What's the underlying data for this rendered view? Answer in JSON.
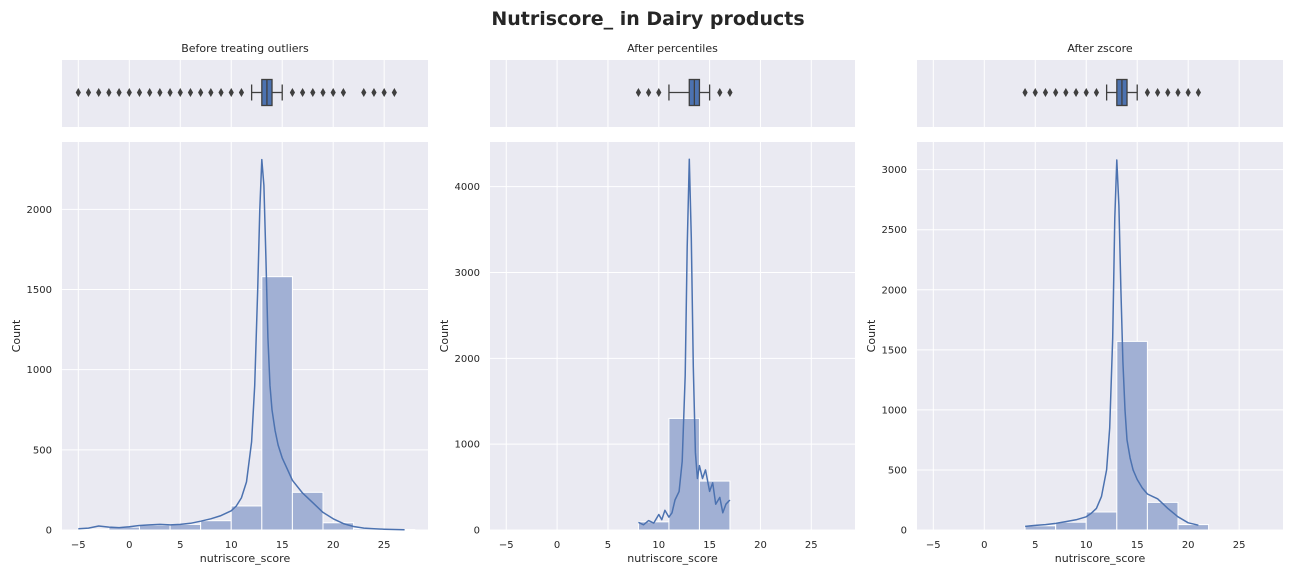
{
  "figure": {
    "title": "Nutriscore_ in Dairy products",
    "colors": {
      "background": "#eaeaf2",
      "grid": "#ffffff",
      "bar": "#a1b0d4",
      "bar_edge": "#ffffff",
      "line": "#4c72b0",
      "box": "#4c72b0",
      "text": "#262626"
    }
  },
  "chart_data": [
    {
      "type": "bar",
      "title": "Before treating outliers",
      "xlabel": "nutriscore_score",
      "ylabel": "Count",
      "xlim": [
        -6.6,
        29.3
      ],
      "ylim": [
        0,
        2420
      ],
      "x_ticks": [
        -5,
        0,
        5,
        10,
        15,
        20,
        25
      ],
      "y_ticks": [
        0,
        500,
        1000,
        1500,
        2000
      ],
      "grid": true,
      "bins": [
        {
          "x0": -5,
          "x1": -2,
          "count": 5
        },
        {
          "x0": -2,
          "x1": 1,
          "count": 18
        },
        {
          "x0": 1,
          "x1": 4,
          "count": 30
        },
        {
          "x0": 4,
          "x1": 7,
          "count": 35
        },
        {
          "x0": 7,
          "x1": 10,
          "count": 58
        },
        {
          "x0": 10,
          "x1": 13,
          "count": 150
        },
        {
          "x0": 13,
          "x1": 16,
          "count": 1580
        },
        {
          "x0": 16,
          "x1": 19,
          "count": 235
        },
        {
          "x0": 19,
          "x1": 22,
          "count": 45
        },
        {
          "x0": 22,
          "x1": 25,
          "count": 8
        },
        {
          "x0": 25,
          "x1": 28,
          "count": 3
        }
      ],
      "kde": {
        "x": [
          -5,
          -4,
          -3,
          -2,
          -1,
          0,
          1,
          2,
          3,
          4,
          5,
          6,
          7,
          8,
          9,
          10,
          10.5,
          11,
          11.5,
          12,
          12.3,
          12.6,
          12.8,
          13,
          13.2,
          13.4,
          13.6,
          13.8,
          14,
          14.3,
          14.6,
          15,
          15.5,
          16,
          17,
          18,
          19,
          20,
          21,
          22,
          23,
          24,
          25,
          26,
          27
        ],
        "y": [
          8,
          12,
          25,
          18,
          15,
          20,
          28,
          32,
          35,
          32,
          35,
          42,
          55,
          70,
          90,
          120,
          150,
          200,
          300,
          550,
          900,
          1500,
          2000,
          2310,
          2150,
          1700,
          1200,
          900,
          750,
          620,
          530,
          450,
          380,
          310,
          230,
          170,
          110,
          70,
          40,
          22,
          12,
          8,
          5,
          3,
          2
        ]
      },
      "box": {
        "min": -5,
        "q1": 13,
        "median": 13.5,
        "q3": 14,
        "max": 15,
        "whisker_low": 12,
        "whisker_high": 15
      },
      "outliers": [
        -5,
        -4,
        -3,
        -2,
        -1,
        0,
        1,
        2,
        3,
        4,
        5,
        6,
        7,
        8,
        9,
        10,
        11,
        16,
        17,
        18,
        19,
        20,
        21,
        23,
        24,
        25,
        26
      ]
    },
    {
      "type": "bar",
      "title": "After percentiles",
      "xlabel": "nutriscore_score",
      "ylabel": "Count",
      "xlim": [
        -6.6,
        29.3
      ],
      "ylim": [
        0,
        4520
      ],
      "x_ticks": [
        -5,
        0,
        5,
        10,
        15,
        20,
        25
      ],
      "y_ticks": [
        0,
        1000,
        2000,
        3000,
        4000
      ],
      "grid": true,
      "bins": [
        {
          "x0": 8,
          "x1": 11,
          "count": 95
        },
        {
          "x0": 11,
          "x1": 14,
          "count": 1300
        },
        {
          "x0": 14,
          "x1": 17,
          "count": 570
        }
      ],
      "kde": {
        "x": [
          8,
          8.5,
          9,
          9.5,
          10,
          10.3,
          10.6,
          11,
          11.3,
          11.6,
          12,
          12.3,
          12.6,
          12.8,
          13,
          13.2,
          13.4,
          13.6,
          13.8,
          14,
          14.3,
          14.6,
          15,
          15.3,
          15.6,
          16,
          16.3,
          16.6,
          17
        ],
        "y": [
          90,
          60,
          110,
          80,
          180,
          120,
          230,
          150,
          200,
          350,
          450,
          800,
          1800,
          3300,
          4320,
          3400,
          1900,
          900,
          600,
          750,
          600,
          700,
          450,
          550,
          300,
          380,
          200,
          300,
          350
        ]
      },
      "box": {
        "q1": 13,
        "median": 13.5,
        "q3": 14,
        "whisker_low": 11,
        "whisker_high": 15
      },
      "outliers": [
        8,
        9,
        10,
        16,
        17
      ]
    },
    {
      "type": "bar",
      "title": "After zscore",
      "xlabel": "nutriscore_score",
      "ylabel": "Count",
      "xlim": [
        -6.6,
        29.3
      ],
      "ylim": [
        0,
        3230
      ],
      "x_ticks": [
        -5,
        0,
        5,
        10,
        15,
        20,
        25
      ],
      "y_ticks": [
        0,
        500,
        1000,
        1500,
        2000,
        2500,
        3000
      ],
      "grid": true,
      "bins": [
        {
          "x0": 4,
          "x1": 7,
          "count": 35
        },
        {
          "x0": 7,
          "x1": 10,
          "count": 65
        },
        {
          "x0": 10,
          "x1": 13,
          "count": 150
        },
        {
          "x0": 13,
          "x1": 16,
          "count": 1570
        },
        {
          "x0": 16,
          "x1": 19,
          "count": 230
        },
        {
          "x0": 19,
          "x1": 22,
          "count": 45
        }
      ],
      "kde": {
        "x": [
          4,
          5,
          6,
          7,
          8,
          9,
          10,
          10.5,
          11,
          11.5,
          12,
          12.3,
          12.6,
          12.8,
          13,
          13.2,
          13.4,
          13.6,
          13.8,
          14,
          14.3,
          14.6,
          15,
          15.5,
          16,
          16.5,
          17,
          17.5,
          18,
          19,
          20,
          21
        ],
        "y": [
          30,
          38,
          45,
          55,
          70,
          85,
          110,
          140,
          180,
          280,
          500,
          850,
          1600,
          2600,
          3080,
          2700,
          2000,
          1400,
          1000,
          750,
          600,
          500,
          420,
          350,
          300,
          280,
          260,
          220,
          180,
          110,
          60,
          40
        ]
      },
      "box": {
        "q1": 13,
        "median": 13.5,
        "q3": 14,
        "whisker_low": 12,
        "whisker_high": 15
      },
      "outliers": [
        4,
        5,
        6,
        7,
        8,
        9,
        10,
        11,
        16,
        17,
        18,
        19,
        20,
        21
      ]
    }
  ]
}
